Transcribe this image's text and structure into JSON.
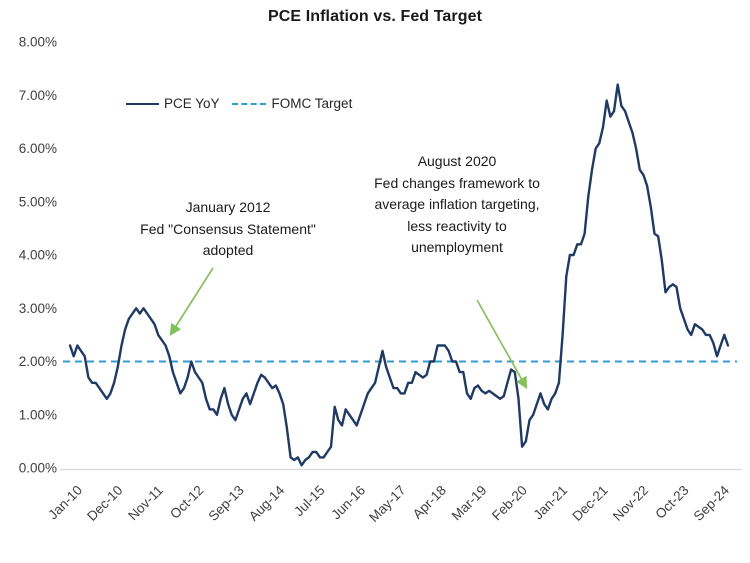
{
  "chart": {
    "colors": {
      "background": "#ffffff",
      "title_text": "#1a1a1a",
      "axis_text": "#404040",
      "axis_line": "#d9d9d9",
      "annotation_text": "#1a1a1a",
      "annotation_arrow": "#84c15e"
    }
  },
  "annotations": {
    "jan2012": {
      "text": "January 2012\nFed \"Consensus Statement\"\nadopted"
    },
    "aug2020": {
      "text": "August 2020\nFed changes framework to\naverage inflation targeting,\nless reactivity to\nunemployment"
    }
  },
  "chart_data": {
    "type": "line",
    "title": "PCE Inflation vs. Fed Target",
    "frequency": "monthly",
    "x_start": "Jan-10",
    "x_end": "Dec-24",
    "x_tick_labels": [
      "Jan-10",
      "Dec-10",
      "Nov-11",
      "Oct-12",
      "Sep-13",
      "Aug-14",
      "Jul-15",
      "Jun-16",
      "May-17",
      "Apr-18",
      "Mar-19",
      "Feb-20",
      "Jan-21",
      "Dec-21",
      "Nov-22",
      "Oct-23",
      "Sep-24"
    ],
    "x_tick_month_step": 11,
    "y_tick_labels": [
      "0.00%",
      "1.00%",
      "2.00%",
      "3.00%",
      "4.00%",
      "5.00%",
      "6.00%",
      "7.00%",
      "8.00%"
    ],
    "ylim": [
      0,
      8
    ],
    "grid": false,
    "legend_position": "top-left-inside",
    "series": [
      {
        "name": "PCE YoY",
        "style": "solid",
        "color": "#1f3a63",
        "values": [
          2.3,
          2.1,
          2.3,
          2.2,
          2.1,
          1.7,
          1.6,
          1.6,
          1.5,
          1.4,
          1.3,
          1.4,
          1.6,
          1.9,
          2.3,
          2.6,
          2.8,
          2.9,
          3.0,
          2.9,
          3.0,
          2.9,
          2.8,
          2.7,
          2.5,
          2.4,
          2.3,
          2.1,
          1.8,
          1.6,
          1.4,
          1.5,
          1.7,
          2.0,
          1.8,
          1.7,
          1.6,
          1.3,
          1.1,
          1.1,
          1.0,
          1.3,
          1.5,
          1.2,
          1.0,
          0.9,
          1.1,
          1.3,
          1.4,
          1.2,
          1.4,
          1.6,
          1.75,
          1.7,
          1.6,
          1.5,
          1.55,
          1.4,
          1.2,
          0.75,
          0.2,
          0.15,
          0.2,
          0.05,
          0.15,
          0.2,
          0.3,
          0.3,
          0.2,
          0.2,
          0.3,
          0.4,
          1.15,
          0.9,
          0.8,
          1.1,
          1.0,
          0.9,
          0.8,
          1.0,
          1.2,
          1.4,
          1.5,
          1.6,
          1.9,
          2.2,
          1.9,
          1.7,
          1.5,
          1.5,
          1.4,
          1.4,
          1.6,
          1.6,
          1.8,
          1.75,
          1.7,
          1.75,
          2.0,
          2.0,
          2.3,
          2.3,
          2.3,
          2.2,
          2.0,
          2.0,
          1.8,
          1.8,
          1.4,
          1.3,
          1.5,
          1.55,
          1.45,
          1.4,
          1.45,
          1.4,
          1.35,
          1.3,
          1.35,
          1.6,
          1.85,
          1.8,
          1.3,
          0.4,
          0.5,
          0.9,
          1.0,
          1.2,
          1.4,
          1.2,
          1.1,
          1.3,
          1.4,
          1.6,
          2.5,
          3.6,
          4.0,
          4.0,
          4.2,
          4.2,
          4.4,
          5.1,
          5.6,
          6.0,
          6.1,
          6.4,
          6.9,
          6.6,
          6.7,
          7.2,
          6.8,
          6.7,
          6.5,
          6.3,
          6.0,
          5.6,
          5.5,
          5.3,
          4.9,
          4.4,
          4.35,
          3.9,
          3.3,
          3.4,
          3.45,
          3.4,
          3.0,
          2.8,
          2.6,
          2.5,
          2.7,
          2.65,
          2.6,
          2.5,
          2.5,
          2.35,
          2.1,
          2.3,
          2.5,
          2.3
        ]
      },
      {
        "name": "FOMC Target",
        "style": "dashed",
        "color": "#2f9cd4",
        "constant_value": 2.0
      }
    ]
  }
}
